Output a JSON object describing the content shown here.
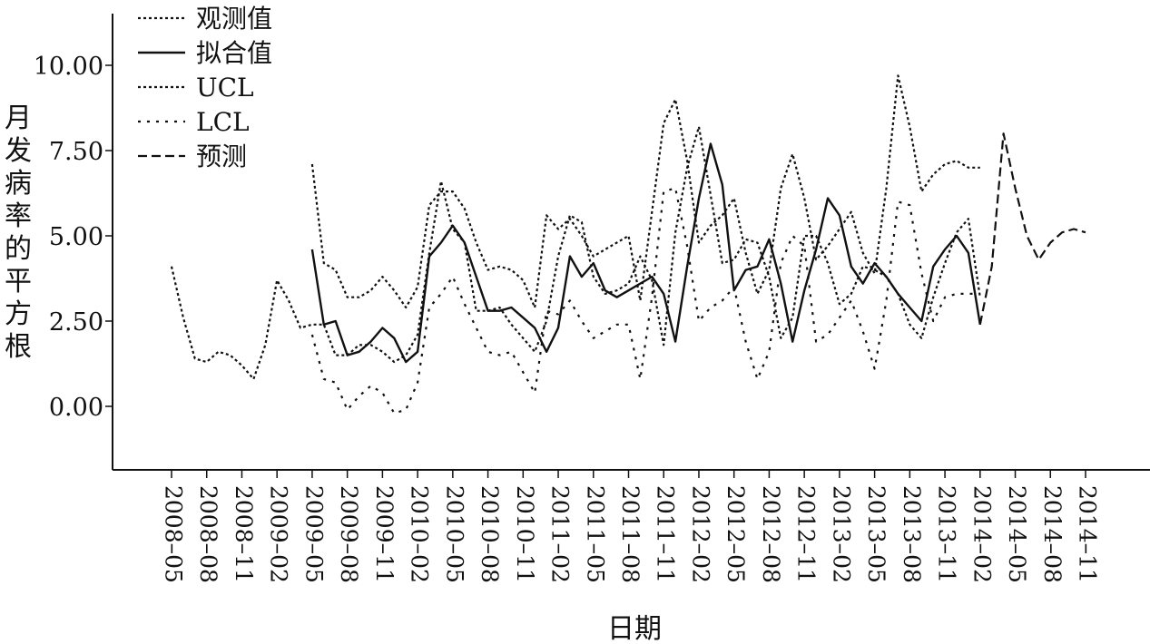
{
  "chart_data": {
    "type": "line",
    "xlabel": "日期",
    "ylabel": "月发病率的平方根",
    "ylim": [
      -1.9,
      11.4
    ],
    "yticks": [
      0,
      2.5,
      5,
      7.5,
      10
    ],
    "ytick_labels": [
      "0.00",
      "2.50",
      "5.00",
      "7.50",
      "10.00"
    ],
    "x_tick_labels": [
      "2008–05",
      "2008–08",
      "2008–11",
      "2009–02",
      "2009–05",
      "2009–08",
      "2009–11",
      "2010–02",
      "2010–05",
      "2010–08",
      "2010–11",
      "2011–02",
      "2011–05",
      "2011–08",
      "2011–11",
      "2012–02",
      "2012–05",
      "2012–08",
      "2012–11",
      "2013–02",
      "2013–05",
      "2013–08",
      "2013–11",
      "2014–02",
      "2014–05",
      "2014–08",
      "2014–11"
    ],
    "x_start": "2008-05",
    "x_end": "2014-11",
    "legend_position": "top-left",
    "series": [
      {
        "name": "观测值",
        "style": "dotted",
        "x": [
          "2008-05",
          "2008-06",
          "2008-07",
          "2008-08",
          "2008-09",
          "2008-10",
          "2008-11",
          "2008-12",
          "2009-01",
          "2009-02",
          "2009-03",
          "2009-04",
          "2009-05",
          "2009-06",
          "2009-07",
          "2009-08",
          "2009-09",
          "2009-10",
          "2009-11",
          "2009-12",
          "2010-01",
          "2010-02",
          "2010-03",
          "2010-04",
          "2010-05",
          "2010-06",
          "2010-07",
          "2010-08",
          "2010-09",
          "2010-10",
          "2010-11",
          "2010-12",
          "2011-01",
          "2011-02",
          "2011-03",
          "2011-04",
          "2011-05",
          "2011-06",
          "2011-07",
          "2011-08",
          "2011-09",
          "2011-10",
          "2011-11",
          "2011-12",
          "2012-01",
          "2012-02",
          "2012-03",
          "2012-04",
          "2012-05",
          "2012-06",
          "2012-07",
          "2012-08",
          "2012-09",
          "2012-10",
          "2012-11",
          "2012-12",
          "2013-01",
          "2013-02",
          "2013-03",
          "2013-04",
          "2013-05",
          "2013-06",
          "2013-07",
          "2013-08",
          "2013-09",
          "2013-10",
          "2013-11",
          "2013-12",
          "2014-01",
          "2014-02"
        ],
        "values": [
          4.1,
          2.6,
          1.4,
          1.3,
          1.6,
          1.5,
          1.2,
          0.8,
          1.8,
          3.7,
          3.1,
          2.3,
          2.4,
          2.4,
          1.5,
          1.5,
          1.8,
          1.8,
          1.6,
          1.3,
          1.5,
          2.1,
          4.5,
          6.6,
          5.2,
          4.8,
          2.8,
          2.8,
          2.9,
          2.4,
          2.0,
          1.6,
          2.5,
          4.4,
          5.6,
          5.4,
          3.8,
          3.3,
          3.4,
          3.6,
          4.4,
          3.7,
          1.8,
          5.1,
          7.0,
          8.2,
          6.2,
          4.2,
          4.3,
          4.9,
          4.8,
          3.8,
          2.0,
          2.6,
          5.0,
          5.0,
          4.2,
          3.0,
          3.3,
          4.1,
          4.0,
          3.8,
          3.3,
          2.4,
          2.0,
          3.2,
          4.2,
          5.1,
          5.5,
          3.2
        ]
      },
      {
        "name": "拟合值",
        "style": "solid",
        "x": [
          "2009-05",
          "2009-06",
          "2009-07",
          "2009-08",
          "2009-09",
          "2009-10",
          "2009-11",
          "2009-12",
          "2010-01",
          "2010-02",
          "2010-03",
          "2010-04",
          "2010-05",
          "2010-06",
          "2010-07",
          "2010-08",
          "2010-09",
          "2010-10",
          "2010-11",
          "2010-12",
          "2011-01",
          "2011-02",
          "2011-03",
          "2011-04",
          "2011-05",
          "2011-06",
          "2011-07",
          "2011-08",
          "2011-09",
          "2011-10",
          "2011-11",
          "2011-12",
          "2012-01",
          "2012-02",
          "2012-03",
          "2012-04",
          "2012-05",
          "2012-06",
          "2012-07",
          "2012-08",
          "2012-09",
          "2012-10",
          "2012-11",
          "2012-12",
          "2013-01",
          "2013-02",
          "2013-03",
          "2013-04",
          "2013-05",
          "2013-06",
          "2013-07",
          "2013-08",
          "2013-09",
          "2013-10",
          "2013-11",
          "2013-12",
          "2014-01",
          "2014-02"
        ],
        "values": [
          4.6,
          2.4,
          2.5,
          1.5,
          1.6,
          1.9,
          2.3,
          2.0,
          1.3,
          1.6,
          4.4,
          4.8,
          5.3,
          4.8,
          3.8,
          2.8,
          2.8,
          2.9,
          2.6,
          2.3,
          1.6,
          2.3,
          4.4,
          3.8,
          4.2,
          3.4,
          3.2,
          3.4,
          3.6,
          3.8,
          3.3,
          1.9,
          4.1,
          6.1,
          7.7,
          6.5,
          3.4,
          4.0,
          4.1,
          4.9,
          3.6,
          1.9,
          3.4,
          4.6,
          6.1,
          5.6,
          4.1,
          3.6,
          4.2,
          3.8,
          3.3,
          2.9,
          2.5,
          4.1,
          4.6,
          5.0,
          4.5,
          2.4
        ]
      },
      {
        "name": "UCL",
        "style": "dotted",
        "x": [
          "2009-05",
          "2009-06",
          "2009-07",
          "2009-08",
          "2009-09",
          "2009-10",
          "2009-11",
          "2009-12",
          "2010-01",
          "2010-02",
          "2010-03",
          "2010-04",
          "2010-05",
          "2010-06",
          "2010-07",
          "2010-08",
          "2010-09",
          "2010-10",
          "2010-11",
          "2010-12",
          "2011-01",
          "2011-02",
          "2011-03",
          "2011-04",
          "2011-05",
          "2011-06",
          "2011-07",
          "2011-08",
          "2011-09",
          "2011-10",
          "2011-11",
          "2011-12",
          "2012-01",
          "2012-02",
          "2012-03",
          "2012-04",
          "2012-05",
          "2012-06",
          "2012-07",
          "2012-08",
          "2012-09",
          "2012-10",
          "2012-11",
          "2012-12",
          "2013-01",
          "2013-02",
          "2013-03",
          "2013-04",
          "2013-05",
          "2013-06",
          "2013-07",
          "2013-08",
          "2013-09",
          "2013-10",
          "2013-11",
          "2013-12",
          "2014-01",
          "2014-02"
        ],
        "values": [
          7.1,
          4.2,
          4.0,
          3.2,
          3.2,
          3.4,
          3.8,
          3.4,
          2.9,
          3.5,
          5.9,
          6.3,
          6.3,
          5.8,
          4.8,
          4.0,
          4.1,
          4.0,
          3.7,
          2.9,
          5.6,
          5.2,
          5.5,
          5.0,
          4.4,
          4.6,
          4.8,
          5.0,
          3.1,
          5.7,
          8.3,
          9.0,
          7.2,
          4.8,
          5.3,
          5.6,
          6.1,
          4.5,
          3.3,
          4.0,
          6.4,
          7.4,
          6.1,
          4.3,
          4.7,
          5.2,
          5.7,
          4.5,
          3.9,
          6.4,
          9.7,
          8.2,
          6.3,
          6.8,
          7.1,
          7.2,
          7.0,
          7.0
        ]
      },
      {
        "name": "LCL",
        "style": "sparse-dotted",
        "x": [
          "2009-05",
          "2009-06",
          "2009-07",
          "2009-08",
          "2009-09",
          "2009-10",
          "2009-11",
          "2009-12",
          "2010-01",
          "2010-02",
          "2010-03",
          "2010-04",
          "2010-05",
          "2010-06",
          "2010-07",
          "2010-08",
          "2010-09",
          "2010-10",
          "2010-11",
          "2010-12",
          "2011-01",
          "2011-02",
          "2011-03",
          "2011-04",
          "2011-05",
          "2011-06",
          "2011-07",
          "2011-08",
          "2011-09",
          "2011-10",
          "2011-11",
          "2011-12",
          "2012-01",
          "2012-02",
          "2012-03",
          "2012-04",
          "2012-05",
          "2012-06",
          "2012-07",
          "2012-08",
          "2012-09",
          "2012-10",
          "2012-11",
          "2012-12",
          "2013-01",
          "2013-02",
          "2013-03",
          "2013-04",
          "2013-05",
          "2013-06",
          "2013-07",
          "2013-08",
          "2013-09",
          "2013-10",
          "2013-11",
          "2013-12",
          "2014-01",
          "2014-02"
        ],
        "values": [
          2.1,
          0.8,
          0.7,
          -0.1,
          0.3,
          0.6,
          0.4,
          -0.2,
          -0.1,
          0.7,
          2.9,
          3.3,
          3.8,
          3.0,
          2.3,
          1.6,
          1.5,
          1.6,
          1.0,
          0.4,
          2.8,
          2.7,
          3.1,
          2.5,
          2.0,
          2.2,
          2.4,
          2.4,
          0.8,
          3.2,
          6.3,
          6.4,
          4.7,
          2.5,
          2.9,
          3.1,
          3.5,
          1.9,
          0.8,
          1.6,
          4.2,
          5.0,
          4.7,
          1.9,
          2.1,
          2.6,
          3.1,
          2.2,
          1.1,
          3.1,
          6.0,
          5.9,
          3.9,
          2.5,
          3.2,
          3.3,
          3.3,
          3.3
        ]
      },
      {
        "name": "预测",
        "style": "dashed",
        "x": [
          "2014-02",
          "2014-03",
          "2014-04",
          "2014-05",
          "2014-06",
          "2014-07",
          "2014-08",
          "2014-09",
          "2014-10",
          "2014-11"
        ],
        "values": [
          2.4,
          4.1,
          8.0,
          6.4,
          5.0,
          4.3,
          4.8,
          5.1,
          5.2,
          5.1
        ]
      }
    ]
  }
}
